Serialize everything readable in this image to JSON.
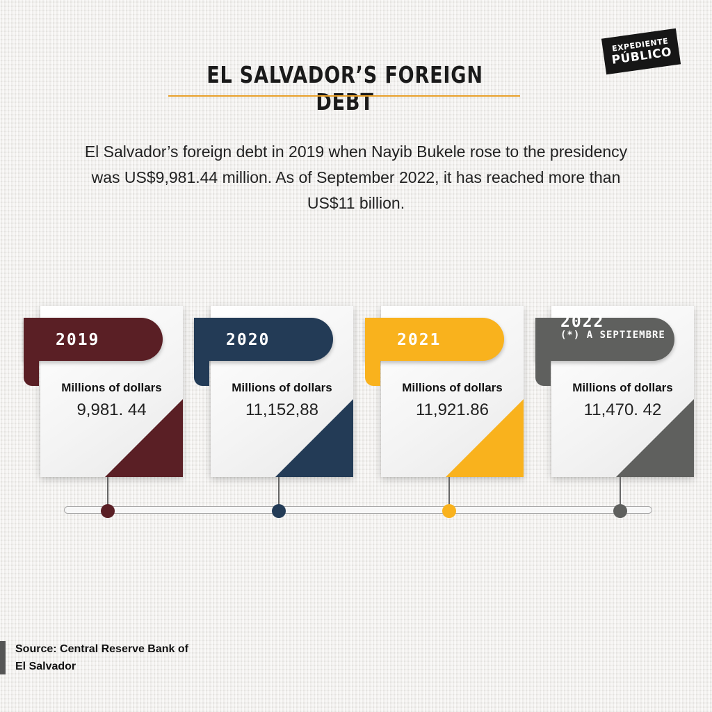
{
  "brand": {
    "line1": "EXPEDIENTE",
    "line2": "PÚBLICO"
  },
  "title": "EL SALVADOR’S FOREIGN DEBT",
  "intro": "El Salvador’s foreign debt in 2019 when Nayib Bukele rose to the presidency was US$9,981.44 million. As of September 2022, it has reached more than US$11 billion.",
  "chart_data": {
    "type": "timeline",
    "unit": "Millions of dollars",
    "items": [
      {
        "year": "2019",
        "note": "",
        "caption": "Millions of dollars",
        "value_text": "9,981. 44",
        "value": 9981.44,
        "color": "#5a1f25"
      },
      {
        "year": "2020",
        "note": "",
        "caption": "Millions of dollars",
        "value_text": "11,152,88",
        "value": 11152.88,
        "color": "#233b56"
      },
      {
        "year": "2021",
        "note": "",
        "caption": "Millions of dollars",
        "value_text": "11,921.86",
        "value": 11921.86,
        "color": "#f9b21d"
      },
      {
        "year": "2022",
        "note": "(*) A SEPTIEMBRE",
        "caption": "Millions of dollars",
        "value_text": "11,470. 42",
        "value": 11470.42,
        "color": "#5f605e"
      }
    ]
  },
  "source": {
    "line1": "Source: Central Reserve Bank of",
    "line2": "El Salvador"
  }
}
